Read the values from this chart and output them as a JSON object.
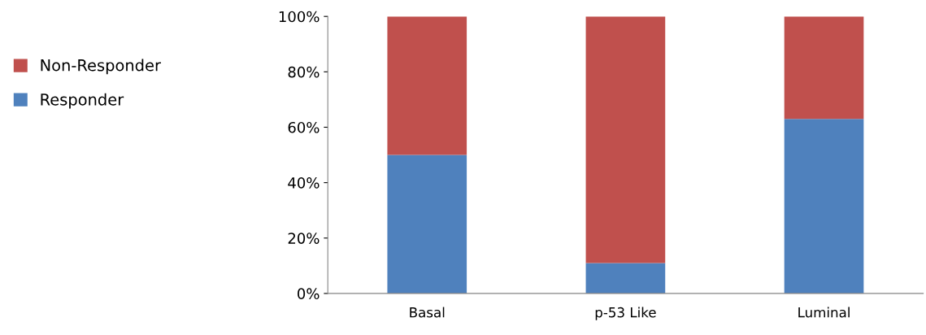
{
  "chart_data": {
    "type": "bar",
    "stacked": true,
    "categories": [
      "Basal",
      "p-53 Like",
      "Luminal"
    ],
    "series": [
      {
        "name": "Responder",
        "color": "#4f81bd",
        "values": [
          50,
          11,
          63
        ]
      },
      {
        "name": "Non-Responder",
        "color": "#c0504d",
        "values": [
          50,
          89,
          37
        ]
      }
    ],
    "ylim": [
      0,
      100
    ],
    "yticks": [
      {
        "value": 0,
        "label": "0%"
      },
      {
        "value": 20,
        "label": "20%"
      },
      {
        "value": 40,
        "label": "40%"
      },
      {
        "value": 60,
        "label": "60%"
      },
      {
        "value": 80,
        "label": "80%"
      },
      {
        "value": 100,
        "label": "100%"
      }
    ],
    "grid": false,
    "legend": "left"
  }
}
